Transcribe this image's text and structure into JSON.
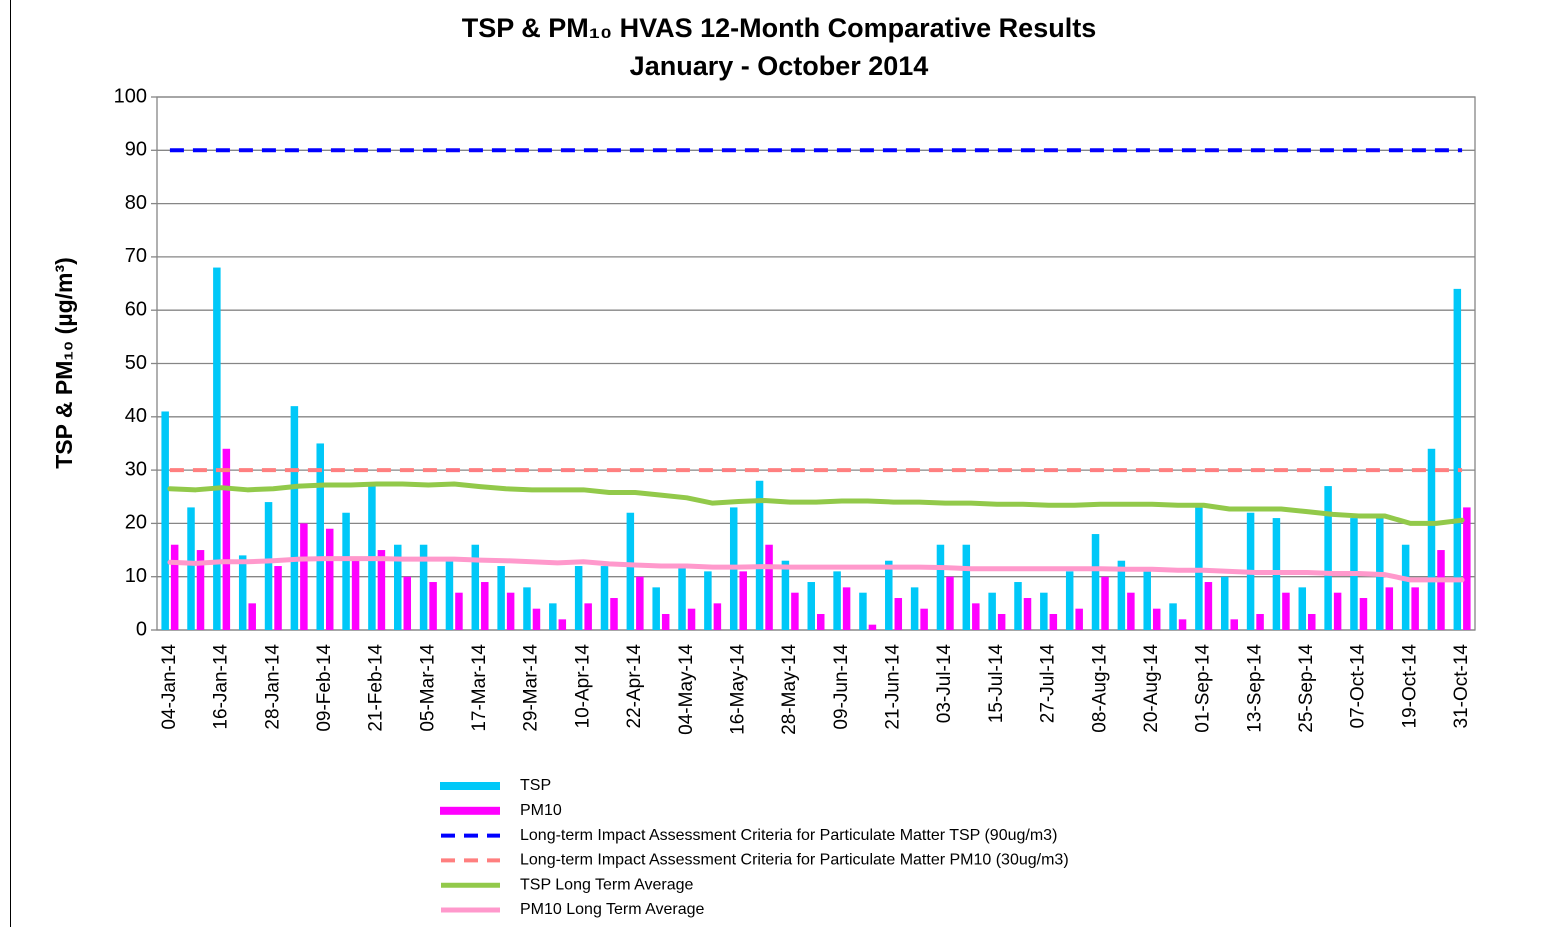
{
  "chart_data": {
    "type": "bar",
    "title": "TSP & PM₁₀ HVAS 12-Month Comparative Results",
    "subtitle": "January - October 2014",
    "y_label": "TSP & PM₁₀ (µg/m³)",
    "categories": [
      "04-Jan-14",
      null,
      "16-Jan-14",
      null,
      "28-Jan-14",
      null,
      "09-Feb-14",
      null,
      "21-Feb-14",
      null,
      "05-Mar-14",
      null,
      "17-Mar-14",
      null,
      "29-Mar-14",
      null,
      "10-Apr-14",
      null,
      "22-Apr-14",
      null,
      "04-May-14",
      null,
      "16-May-14",
      null,
      "28-May-14",
      null,
      "09-Jun-14",
      null,
      "21-Jun-14",
      null,
      "03-Jul-14",
      null,
      "15-Jul-14",
      null,
      "27-Jul-14",
      null,
      "08-Aug-14",
      null,
      "20-Aug-14",
      null,
      "01-Sep-14",
      null,
      "13-Sep-14",
      null,
      "25-Sep-14",
      null,
      "07-Oct-14",
      null,
      "19-Oct-14",
      null,
      "31-Oct-14"
    ],
    "series": [
      {
        "name": "TSP",
        "type": "bar",
        "color": "#00c8f8",
        "values": [
          41,
          23,
          68,
          14,
          24,
          42,
          35,
          22,
          27,
          16,
          16,
          13,
          16,
          12,
          8,
          5,
          12,
          12,
          22,
          8,
          12,
          11,
          23,
          28,
          13,
          9,
          11,
          7,
          13,
          8,
          16,
          16,
          7,
          9,
          7,
          11,
          18,
          13,
          11,
          5,
          23,
          10,
          22,
          21,
          8,
          27,
          21,
          21,
          16,
          34,
          64
        ]
      },
      {
        "name": "PM10",
        "type": "bar",
        "color": "#ff00ff",
        "values": [
          16,
          15,
          34,
          5,
          12,
          20,
          19,
          13,
          15,
          10,
          9,
          7,
          9,
          7,
          4,
          2,
          5,
          6,
          10,
          3,
          4,
          5,
          11,
          16,
          7,
          3,
          8,
          1,
          6,
          4,
          10,
          5,
          3,
          6,
          3,
          4,
          10,
          7,
          4,
          2,
          9,
          2,
          3,
          7,
          3,
          7,
          6,
          8,
          8,
          15,
          23
        ]
      },
      {
        "name": "Long-term Impact Assessment Criteria for Particulate Matter TSP (90ug/m3)",
        "type": "line",
        "dashed": true,
        "color": "#0000ff",
        "values": [
          90,
          90,
          90,
          90,
          90,
          90,
          90,
          90,
          90,
          90,
          90,
          90,
          90,
          90,
          90,
          90,
          90,
          90,
          90,
          90,
          90,
          90,
          90,
          90,
          90,
          90,
          90,
          90,
          90,
          90,
          90,
          90,
          90,
          90,
          90,
          90,
          90,
          90,
          90,
          90,
          90,
          90,
          90,
          90,
          90,
          90,
          90,
          90,
          90,
          90,
          90
        ]
      },
      {
        "name": "Long-term Impact Assessment Criteria for Particulate Matter PM10 (30ug/m3)",
        "type": "line",
        "dashed": true,
        "color": "#ff7f7f",
        "values": [
          30,
          30,
          30,
          30,
          30,
          30,
          30,
          30,
          30,
          30,
          30,
          30,
          30,
          30,
          30,
          30,
          30,
          30,
          30,
          30,
          30,
          30,
          30,
          30,
          30,
          30,
          30,
          30,
          30,
          30,
          30,
          30,
          30,
          30,
          30,
          30,
          30,
          30,
          30,
          30,
          30,
          30,
          30,
          30,
          30,
          30,
          30,
          30,
          30,
          30,
          30
        ]
      },
      {
        "name": "TSP Long Term Average",
        "type": "line",
        "dashed": false,
        "color": "#92c94a",
        "values": [
          26.5,
          26.3,
          26.7,
          26.3,
          26.5,
          27.0,
          27.2,
          27.2,
          27.4,
          27.4,
          27.2,
          27.4,
          26.9,
          26.5,
          26.3,
          26.3,
          26.3,
          25.8,
          25.8,
          25.3,
          24.8,
          23.8,
          24.1,
          24.3,
          24.0,
          24.0,
          24.2,
          24.2,
          24.0,
          24.0,
          23.8,
          23.8,
          23.6,
          23.6,
          23.4,
          23.4,
          23.6,
          23.6,
          23.6,
          23.4,
          23.4,
          22.7,
          22.7,
          22.7,
          22.2,
          21.7,
          21.4,
          21.4,
          20.0,
          20.0,
          20.6
        ]
      },
      {
        "name": "PM10 Long Term Average",
        "type": "line",
        "dashed": false,
        "color": "#ff99cc",
        "values": [
          12.7,
          12.5,
          12.8,
          12.8,
          13.0,
          13.3,
          13.4,
          13.4,
          13.4,
          13.3,
          13.3,
          13.3,
          13.1,
          13.0,
          12.8,
          12.6,
          12.8,
          12.4,
          12.2,
          12.0,
          12.0,
          11.8,
          11.8,
          11.9,
          11.8,
          11.8,
          11.8,
          11.8,
          11.8,
          11.8,
          11.7,
          11.5,
          11.5,
          11.5,
          11.5,
          11.5,
          11.5,
          11.4,
          11.4,
          11.2,
          11.2,
          11.0,
          10.8,
          10.8,
          10.8,
          10.6,
          10.6,
          10.4,
          9.4,
          9.4,
          9.4
        ]
      }
    ],
    "ylim": [
      0,
      100
    ],
    "yticks": [
      0,
      10,
      20,
      30,
      40,
      50,
      60,
      70,
      80,
      90,
      100
    ],
    "grid": true
  }
}
